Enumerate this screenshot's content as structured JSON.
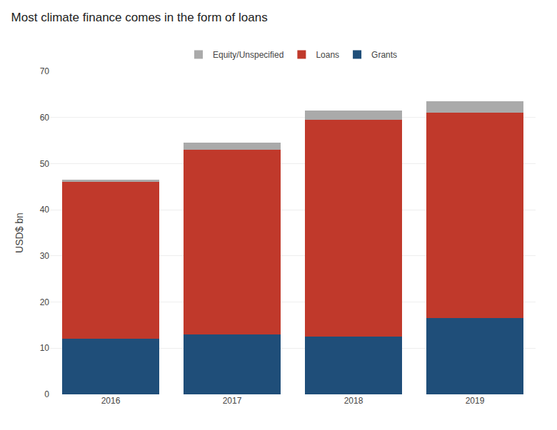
{
  "chart_data": {
    "type": "bar",
    "title": "Most climate finance comes in the form of loans",
    "categories": [
      "2016",
      "2017",
      "2018",
      "2019"
    ],
    "series": [
      {
        "name": "Grants",
        "color": "#1f4e79",
        "values": [
          12.0,
          13.0,
          12.5,
          16.5
        ]
      },
      {
        "name": "Loans",
        "color": "#c0392b",
        "values": [
          34.0,
          40.0,
          47.0,
          44.5
        ]
      },
      {
        "name": "Equity/Unspecified",
        "color": "#aaaaaa",
        "values": [
          0.5,
          1.5,
          2.0,
          2.5
        ]
      }
    ],
    "ylabel": "USD$ bn",
    "ylim": [
      0,
      70
    ],
    "yticks": [
      0,
      10,
      20,
      30,
      40,
      50,
      60,
      70
    ],
    "grid": true,
    "stacked": true,
    "legend": "top"
  }
}
